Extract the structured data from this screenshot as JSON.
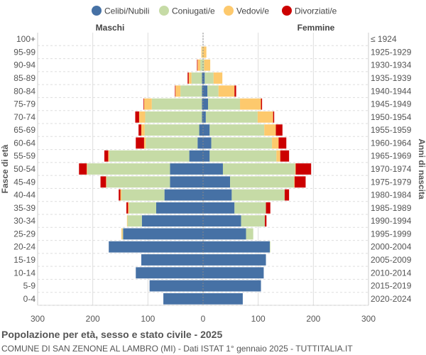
{
  "chart_data": {
    "type": "bar",
    "orientation": "horizontal-pyramid",
    "title": "Popolazione per età, sesso e stato civile - 2025",
    "subtitle": "COMUNE DI SAN ZENONE AL LAMBRO (MI) - Dati ISTAT 1° gennaio 2025 - TUTTITALIA.IT",
    "left_label": "Maschi",
    "right_label": "Femmine",
    "ylabel_left": "Fasce di età",
    "ylabel_right": "Anni di nascita",
    "xlim": [
      -300,
      300
    ],
    "xticks": [
      "300",
      "200",
      "100",
      "0",
      "100",
      "200",
      "300"
    ],
    "xtick_values": [
      -300,
      -200,
      -100,
      0,
      100,
      200,
      300
    ],
    "grid": true,
    "legend_position": "top",
    "series_names": [
      "Celibi/Nubili",
      "Coniugati/e",
      "Vedovi/e",
      "Divorziati/e"
    ],
    "colors": [
      "#4671a5",
      "#c6dba6",
      "#fdc96d",
      "#cc0000"
    ],
    "age_groups": [
      "100+",
      "95-99",
      "90-94",
      "85-89",
      "80-84",
      "75-79",
      "70-74",
      "65-69",
      "60-64",
      "55-59",
      "50-54",
      "45-49",
      "40-44",
      "35-39",
      "30-34",
      "25-29",
      "20-24",
      "15-19",
      "10-14",
      "5-9",
      "0-4"
    ],
    "birth_years": [
      "≤ 1924",
      "1925-1929",
      "1930-1934",
      "1935-1939",
      "1940-1944",
      "1945-1949",
      "1950-1954",
      "1955-1959",
      "1960-1964",
      "1965-1969",
      "1970-1974",
      "1975-1979",
      "1980-1984",
      "1985-1989",
      "1990-1994",
      "1995-1999",
      "2000-2004",
      "2005-2009",
      "2010-2014",
      "2015-2019",
      "2020-2024"
    ],
    "males": {
      "celibi": [
        0,
        0,
        0,
        2,
        2,
        2,
        2,
        7,
        10,
        25,
        60,
        60,
        70,
        85,
        111,
        145,
        171,
        112,
        122,
        97,
        72
      ],
      "coniugati": [
        0,
        1,
        5,
        19,
        39,
        91,
        103,
        99,
        94,
        145,
        150,
        115,
        78,
        49,
        26,
        1,
        0,
        0,
        0,
        0,
        0
      ],
      "vedovi": [
        0,
        2,
        5,
        5,
        9,
        14,
        11,
        6,
        3,
        2,
        1,
        1,
        2,
        2,
        1,
        2,
        0,
        0,
        0,
        0,
        0
      ],
      "divorziati": [
        0,
        0,
        1,
        2,
        1,
        1,
        7,
        5,
        15,
        7,
        14,
        10,
        3,
        3,
        0,
        0,
        0,
        0,
        0,
        0,
        0
      ]
    },
    "females": {
      "nubili": [
        0,
        0,
        0,
        3,
        8,
        9,
        5,
        12,
        15,
        12,
        36,
        49,
        52,
        57,
        69,
        78,
        121,
        114,
        110,
        105,
        72
      ],
      "coniugate": [
        0,
        0,
        2,
        16,
        20,
        58,
        94,
        99,
        110,
        121,
        131,
        116,
        96,
        57,
        43,
        13,
        1,
        0,
        0,
        0,
        0
      ],
      "vedove": [
        0,
        6,
        11,
        16,
        29,
        38,
        28,
        21,
        12,
        7,
        1,
        1,
        0,
        0,
        0,
        0,
        0,
        0,
        0,
        0,
        0
      ],
      "divorziate": [
        0,
        0,
        0,
        0,
        3,
        2,
        2,
        12,
        14,
        16,
        28,
        20,
        8,
        8,
        3,
        0,
        0,
        0,
        0,
        0,
        0
      ]
    }
  }
}
